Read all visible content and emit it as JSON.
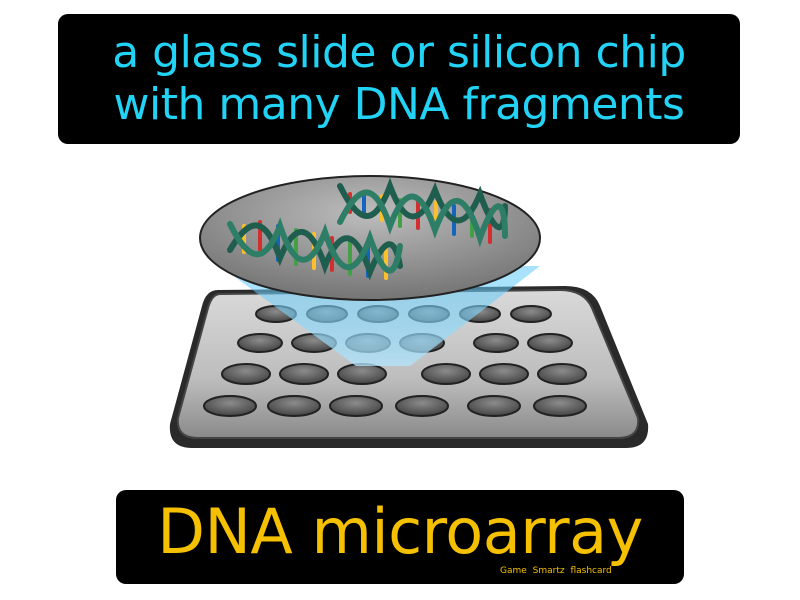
{
  "definition": {
    "line1": "a glass slide or silicon chip",
    "line2": "with many DNA fragments"
  },
  "term": "DNA microarray",
  "brand": "Game Smartz flashcard",
  "colors": {
    "definition_text": "#22d3f5",
    "term_text": "#f5c000",
    "box_background": "#000000"
  },
  "illustration": {
    "icon": "dna-microarray-illustration"
  }
}
